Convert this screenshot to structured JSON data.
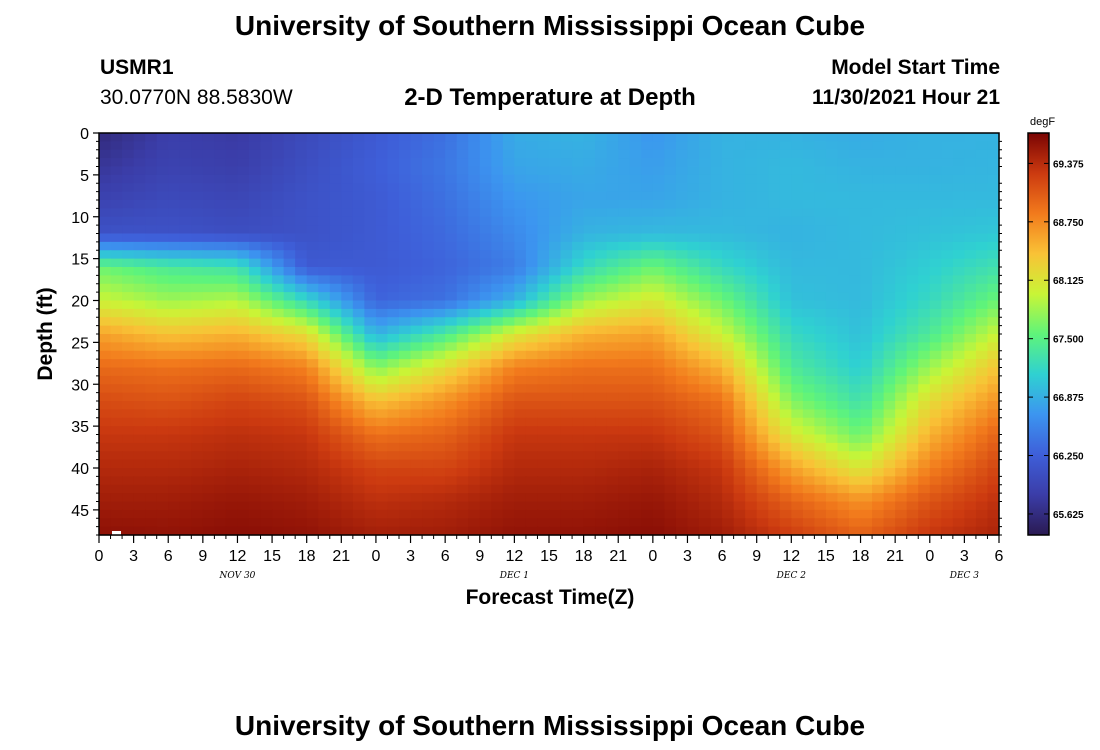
{
  "header": {
    "title": "University of Southern Mississippi Ocean Cube",
    "station_id": "USMR1",
    "station_coords": "30.0770N  88.5830W",
    "subtitle": "2-D Temperature at Depth",
    "model_start_label": "Model Start Time",
    "model_start_value": "11/30/2021 Hour 21"
  },
  "footer": {
    "title": "University of Southern Mississippi Ocean Cube"
  },
  "chart_data": {
    "type": "heatmap",
    "title": "2-D Temperature at Depth",
    "xlabel": "Forecast Time(Z)",
    "ylabel": "Depth (ft)",
    "x_tick_labels": [
      "0",
      "3",
      "6",
      "9",
      "12",
      "15",
      "18",
      "21",
      "0",
      "3",
      "6",
      "9",
      "12",
      "15",
      "18",
      "21",
      "0",
      "3",
      "6",
      "9",
      "12",
      "15",
      "18",
      "21",
      "0",
      "3",
      "6"
    ],
    "date_labels": [
      {
        "label": "NOV 30",
        "hour_index": 4
      },
      {
        "label": "DEC 1",
        "hour_index": 12
      },
      {
        "label": "DEC 2",
        "hour_index": 20
      },
      {
        "label": "DEC 3",
        "hour_index": 25
      }
    ],
    "x_range_hours": [
      0,
      78
    ],
    "y_ticks": [
      "0",
      "5",
      "10",
      "15",
      "20",
      "25",
      "30",
      "35",
      "40",
      "45"
    ],
    "y_range": [
      0,
      48
    ],
    "y_inverted": true,
    "colorbar": {
      "unit": "degF",
      "ticks": [
        "69.375",
        "68.750",
        "68.125",
        "67.500",
        "66.875",
        "66.250",
        "65.625"
      ],
      "range": [
        65.4,
        69.7
      ],
      "colors": [
        "#2a1a52",
        "#3b3da8",
        "#3e5fd9",
        "#3c95f0",
        "#2fd1d1",
        "#5ff47a",
        "#c9f536",
        "#f9c236",
        "#f27a1c",
        "#cc3a10",
        "#7a0403"
      ]
    },
    "grid": {
      "hours": [
        0,
        6,
        12,
        18,
        24,
        30,
        36,
        42,
        48,
        54,
        60,
        66,
        72,
        78
      ],
      "depths": [
        0,
        4,
        8,
        12,
        16,
        20,
        24,
        28,
        32,
        36,
        40,
        44,
        48
      ],
      "values": [
        [
          65.6,
          65.85,
          65.8,
          66.0,
          66.2,
          66.4,
          66.85,
          66.9,
          66.7,
          66.9,
          66.9,
          66.85,
          66.9,
          66.9
        ],
        [
          65.75,
          65.9,
          65.85,
          66.05,
          66.25,
          66.45,
          66.8,
          66.85,
          66.75,
          66.9,
          66.95,
          66.9,
          66.9,
          66.92
        ],
        [
          65.9,
          66.0,
          65.95,
          66.1,
          66.2,
          66.4,
          66.7,
          66.8,
          66.8,
          66.9,
          66.95,
          66.95,
          66.95,
          66.95
        ],
        [
          66.1,
          66.1,
          66.05,
          66.1,
          66.2,
          66.35,
          66.6,
          66.9,
          66.95,
          66.95,
          66.9,
          66.95,
          67.0,
          67.05
        ],
        [
          67.6,
          67.4,
          67.3,
          66.2,
          66.2,
          66.3,
          66.5,
          67.2,
          67.6,
          67.2,
          66.95,
          66.95,
          67.1,
          67.3
        ],
        [
          68.0,
          67.8,
          67.9,
          67.2,
          66.3,
          66.4,
          66.9,
          67.8,
          68.1,
          67.6,
          67.0,
          66.95,
          67.2,
          67.6
        ],
        [
          68.6,
          68.4,
          68.5,
          68.2,
          66.9,
          67.4,
          68.1,
          68.5,
          68.6,
          68.0,
          67.2,
          67.0,
          67.4,
          68.0
        ],
        [
          68.95,
          68.9,
          68.95,
          68.8,
          67.7,
          68.2,
          68.8,
          68.9,
          68.9,
          68.5,
          67.4,
          67.1,
          67.8,
          68.4
        ],
        [
          69.15,
          69.1,
          69.2,
          69.1,
          68.4,
          68.7,
          69.1,
          69.1,
          69.1,
          68.9,
          67.7,
          67.3,
          68.2,
          68.7
        ],
        [
          69.3,
          69.3,
          69.35,
          69.3,
          68.9,
          69.0,
          69.3,
          69.3,
          69.3,
          69.1,
          68.1,
          67.6,
          68.5,
          69.0
        ],
        [
          69.4,
          69.4,
          69.45,
          69.4,
          69.2,
          69.2,
          69.4,
          69.4,
          69.45,
          69.3,
          68.6,
          68.1,
          68.8,
          69.2
        ],
        [
          69.5,
          69.5,
          69.55,
          69.5,
          69.35,
          69.4,
          69.5,
          69.5,
          69.55,
          69.4,
          69.0,
          68.7,
          69.1,
          69.35
        ],
        [
          69.6,
          69.58,
          69.62,
          69.58,
          69.48,
          69.5,
          69.58,
          69.58,
          69.62,
          69.5,
          69.25,
          69.0,
          69.3,
          69.45
        ]
      ]
    }
  }
}
